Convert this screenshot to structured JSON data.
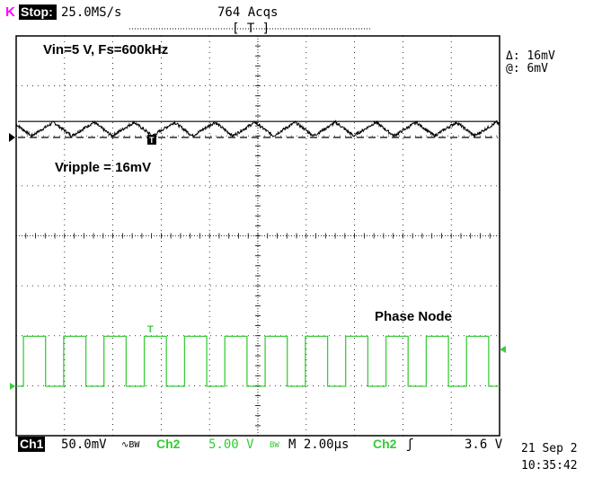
{
  "header": {
    "trigger_letter": "K",
    "run_state": "Stop:",
    "sample_rate": "25.0MS/s",
    "acquisitions": "764 Acqs",
    "trigger_window": "[ T ]"
  },
  "cursor_readout": {
    "delta": "Δ: 16mV",
    "at": "@: 6mV"
  },
  "footer": {
    "ch1_label": "Ch1",
    "ch1_scale": "50.0mV",
    "ch1_bw_symbol": "∿BW",
    "ch2_label": "Ch2",
    "ch2_scale": "5.00 V",
    "ch2_bw_symbol": "BW",
    "timebase": "M 2.00µs",
    "trigger_source": "Ch2",
    "trigger_slope": "ʃ",
    "trigger_level": "3.6 V",
    "date": "21 Sep 2",
    "time": "10:35:42"
  },
  "colors": {
    "ch1_trace": "#000000",
    "ch2_trace": "#3dcc3d",
    "trigger_letter": "#ff00ff",
    "ch2_label": "#33cc33",
    "graticule": "#000000"
  },
  "chart_data": {
    "type": "line",
    "title": "",
    "xlabel": "",
    "ylabel": "",
    "grid": true,
    "x_unit": "us",
    "x_divisions": 10,
    "time_per_division_us": 2.0,
    "xlim": [
      0,
      20
    ],
    "annotations": [
      "Vin=5 V, Fs=600kHz",
      "Vripple = 16mV",
      "Phase Node"
    ],
    "series": [
      {
        "id": "ch1",
        "volts_per_division": 0.05,
        "shape": "triangle-ripple",
        "ripple_peak_to_peak_mV": 16,
        "switching_frequency_kHz": 600,
        "cursor_upper_mV": 16,
        "cursor_lower_mV": 0
      },
      {
        "id": "ch2",
        "volts_per_division": 5.0,
        "shape": "square",
        "amplitude_V": 5,
        "switching_frequency_kHz": 600,
        "duty_cycle": 0.55
      }
    ]
  }
}
